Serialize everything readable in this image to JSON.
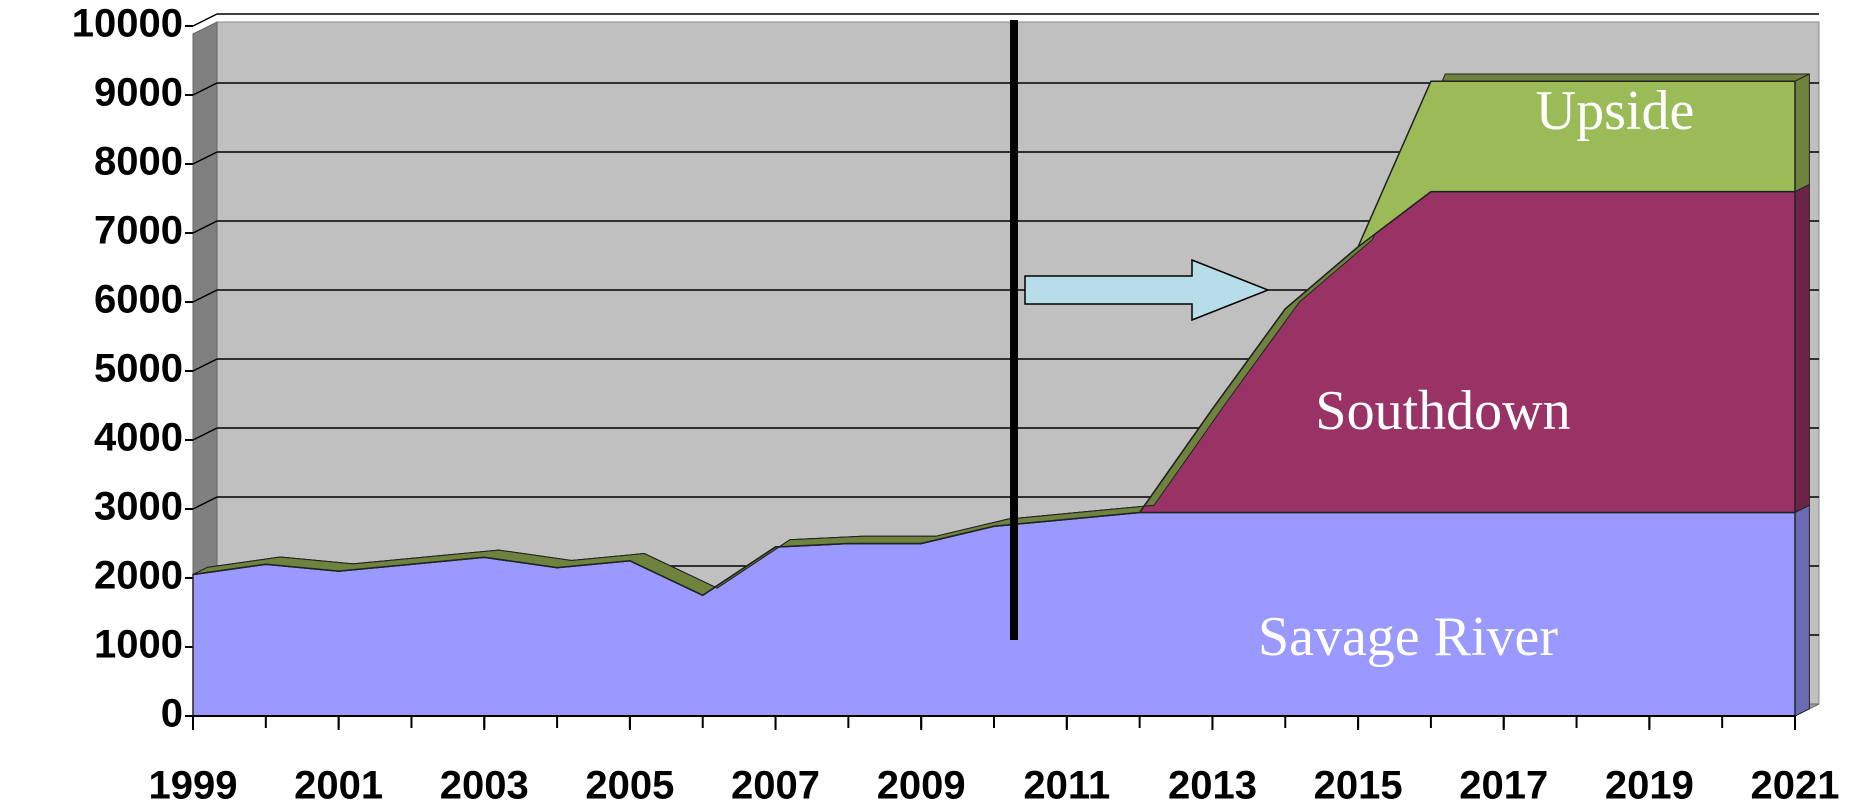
{
  "chart_data": {
    "type": "area",
    "stacked": true,
    "x": [
      1999,
      2000,
      2001,
      2002,
      2003,
      2004,
      2005,
      2006,
      2007,
      2008,
      2009,
      2010,
      2011,
      2012,
      2013,
      2014,
      2015,
      2016,
      2017,
      2018,
      2019,
      2020,
      2021
    ],
    "series": [
      {
        "name": "Savage River",
        "color": "#9999ff",
        "values": [
          2050,
          2200,
          2100,
          2200,
          2300,
          2150,
          2250,
          1750,
          2450,
          2500,
          2500,
          2750,
          2850,
          2950,
          2950,
          2950,
          2950,
          2950,
          2950,
          2950,
          2950,
          2950,
          2950
        ]
      },
      {
        "name": "Southdown",
        "color": "#993366",
        "values": [
          0,
          0,
          0,
          0,
          0,
          0,
          0,
          0,
          0,
          0,
          0,
          0,
          0,
          0,
          1500,
          2950,
          3850,
          4650,
          4650,
          4650,
          4650,
          4650,
          4650
        ]
      },
      {
        "name": "Upside",
        "color": "#9bbb59",
        "values": [
          0,
          0,
          0,
          0,
          0,
          0,
          0,
          0,
          0,
          0,
          0,
          0,
          0,
          0,
          0,
          0,
          0,
          1600,
          1600,
          1600,
          1600,
          1600,
          1600
        ]
      }
    ],
    "xlim": [
      1999,
      2021
    ],
    "xticks": [
      1999,
      2001,
      2003,
      2005,
      2007,
      2009,
      2011,
      2013,
      2015,
      2017,
      2019,
      2021
    ],
    "ylim": [
      0,
      10000
    ],
    "yticks": [
      0,
      1000,
      2000,
      3000,
      4000,
      5000,
      6000,
      7000,
      8000,
      9000,
      10000
    ],
    "grid": true
  }
}
